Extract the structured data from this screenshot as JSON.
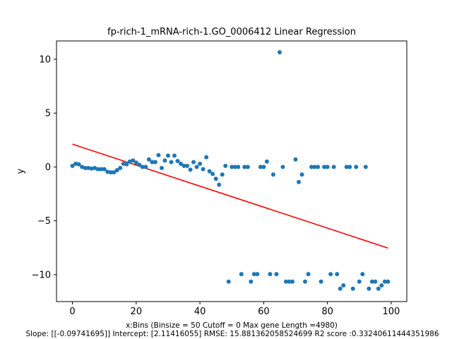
{
  "chart_data": {
    "type": "scatter",
    "title": "fp-rich-1_mRNA-rich-1.GO_0006412 Linear Regression",
    "xlabel": "x:Bins  (Binsize = 50 Cutoff = 0 Max gene Length =4980)",
    "ylabel": "y",
    "footer": "Slope: [[-0.09741695]] Intercept: [2.11416055] RMSE: 15.881362058524699 R2 score :0.33240611444351986",
    "xlim": [
      -5,
      104.9
    ],
    "ylim": [
      -12.5,
      11.7
    ],
    "x_ticks": [
      0,
      20,
      40,
      60,
      80,
      100
    ],
    "y_ticks": [
      -10,
      -5,
      0,
      5,
      10
    ],
    "x_tick_labels": [
      "0",
      "20",
      "40",
      "60",
      "80",
      "100"
    ],
    "y_tick_labels": [
      "−10",
      "−5",
      "0",
      "5",
      "10"
    ],
    "grid": false,
    "colors": {
      "points": "#1f77b4",
      "fit_line": "#ff0000"
    },
    "series": [
      {
        "type": "scatter",
        "points": [
          [
            0,
            0.1
          ],
          [
            1,
            0.3
          ],
          [
            2,
            0.25
          ],
          [
            3,
            0.0
          ],
          [
            4,
            -0.1
          ],
          [
            5,
            -0.1
          ],
          [
            6,
            -0.15
          ],
          [
            7,
            -0.1
          ],
          [
            8,
            -0.2
          ],
          [
            9,
            -0.2
          ],
          [
            10,
            -0.2
          ],
          [
            11,
            -0.45
          ],
          [
            12,
            -0.5
          ],
          [
            13,
            -0.5
          ],
          [
            14,
            -0.3
          ],
          [
            15,
            -0.1
          ],
          [
            16,
            0.3
          ],
          [
            17,
            0.25
          ],
          [
            18,
            0.5
          ],
          [
            19,
            0.6
          ],
          [
            20,
            0.4
          ],
          [
            21,
            0.2
          ],
          [
            22,
            0.0
          ],
          [
            23,
            0.0
          ],
          [
            24,
            0.7
          ],
          [
            25,
            0.45
          ],
          [
            26,
            0.45
          ],
          [
            27,
            1.1
          ],
          [
            28,
            -0.1
          ],
          [
            29,
            0.6
          ],
          [
            30,
            1.05
          ],
          [
            31,
            0.45
          ],
          [
            32,
            1.05
          ],
          [
            33,
            0.55
          ],
          [
            34,
            0.3
          ],
          [
            35,
            0.1
          ],
          [
            36,
            0.1
          ],
          [
            37,
            -0.25
          ],
          [
            38,
            0.45
          ],
          [
            39,
            0.0
          ],
          [
            40,
            0.3
          ],
          [
            41,
            -0.2
          ],
          [
            42,
            0.9
          ],
          [
            43,
            -0.4
          ],
          [
            44,
            -0.65
          ],
          [
            45,
            -1.1
          ],
          [
            46,
            -1.65
          ],
          [
            47,
            -0.7
          ],
          [
            48,
            0.1
          ],
          [
            49,
            -10.65
          ],
          [
            50,
            0.0
          ],
          [
            51,
            0.0
          ],
          [
            52,
            0.0
          ],
          [
            53,
            -9.95
          ],
          [
            54,
            0.0
          ],
          [
            55,
            0.0
          ],
          [
            56,
            -10.65
          ],
          [
            57,
            -9.95
          ],
          [
            58,
            -9.95
          ],
          [
            59,
            0.0
          ],
          [
            60,
            0.0
          ],
          [
            61,
            0.5
          ],
          [
            62,
            -9.95
          ],
          [
            63,
            -0.7
          ],
          [
            64,
            -9.95
          ],
          [
            65,
            10.65
          ],
          [
            66,
            0.0
          ],
          [
            67,
            -10.65
          ],
          [
            68,
            -10.65
          ],
          [
            69,
            -10.65
          ],
          [
            70,
            0.7
          ],
          [
            71,
            -1.4
          ],
          [
            72,
            -0.7
          ],
          [
            73,
            -10.65
          ],
          [
            74,
            -9.95
          ],
          [
            75,
            0.0
          ],
          [
            76,
            0.0
          ],
          [
            77,
            0.0
          ],
          [
            78,
            -10.65
          ],
          [
            79,
            0.0
          ],
          [
            80,
            0.0
          ],
          [
            81,
            -9.95
          ],
          [
            82,
            0.0
          ],
          [
            83,
            -9.95
          ],
          [
            84,
            -11.3
          ],
          [
            85,
            -11.0
          ],
          [
            86,
            0.0
          ],
          [
            87,
            0.0
          ],
          [
            88,
            -11.3
          ],
          [
            89,
            0.0
          ],
          [
            90,
            -10.65
          ],
          [
            91,
            -9.95
          ],
          [
            92,
            0.0
          ],
          [
            93,
            -11.3
          ],
          [
            94,
            -10.65
          ],
          [
            95,
            -10.65
          ],
          [
            96,
            -11.3
          ],
          [
            97,
            -11.0
          ],
          [
            98,
            -10.65
          ],
          [
            99,
            -10.65
          ]
        ]
      },
      {
        "type": "line",
        "points": [
          [
            0,
            2.11416055
          ],
          [
            99,
            -7.5301175
          ]
        ]
      }
    ]
  }
}
